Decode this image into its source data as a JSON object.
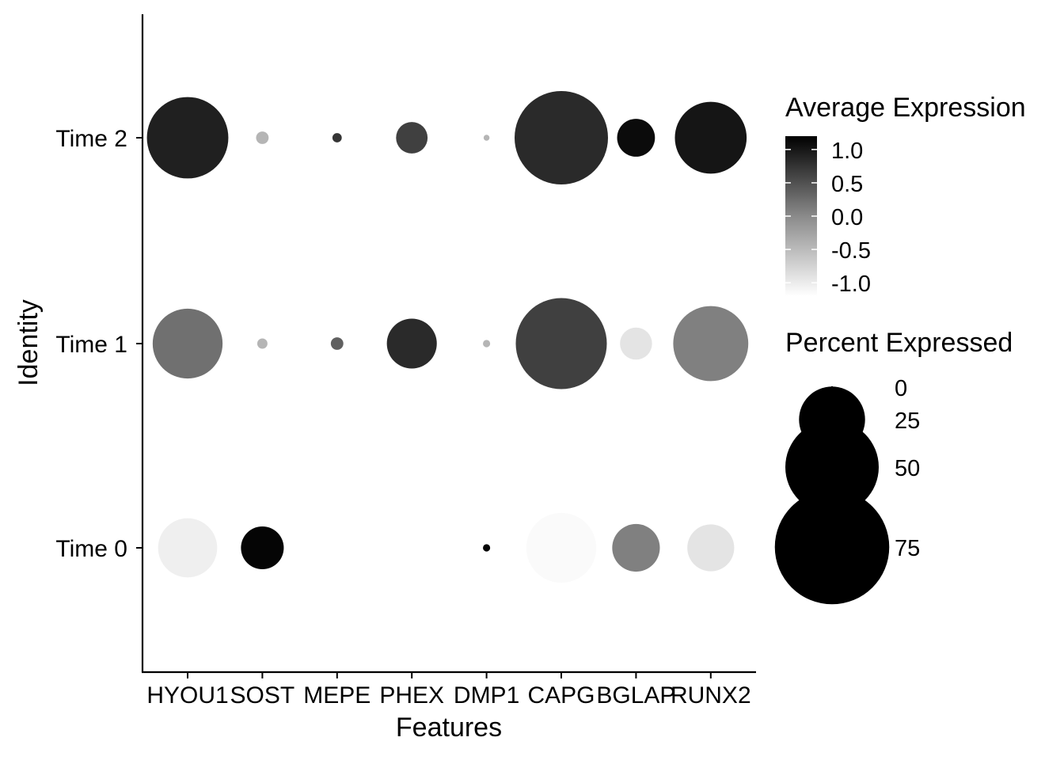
{
  "chart_data": {
    "type": "dot",
    "xlabel": "Features",
    "ylabel": "Identity",
    "features": [
      "HYOU1",
      "SOST",
      "MEPE",
      "PHEX",
      "DMP1",
      "CAPG",
      "BGLAP",
      "RUNX2"
    ],
    "identities": [
      "Time 0",
      "Time 1",
      "Time 2"
    ],
    "avg_expression": {
      "Time 0": [
        -1.05,
        1.15,
        -1.2,
        -1.2,
        1.15,
        -1.15,
        0.0,
        -0.95
      ],
      "Time 1": [
        0.15,
        -0.5,
        0.3,
        0.8,
        -0.5,
        0.6,
        -0.95,
        0.0
      ],
      "Time 2": [
        0.9,
        -0.5,
        0.7,
        0.6,
        -0.5,
        0.8,
        1.1,
        1.0
      ]
    },
    "pct_expressed": {
      "Time 0": [
        20,
        10.5,
        0.3,
        0.9,
        0.3,
        28,
        13,
        12.6
      ],
      "Time 1": [
        28,
        0.6,
        0.9,
        14.3,
        0.3,
        47.5,
        5.9,
        32.3
      ],
      "Time 2": [
        38,
        0.9,
        0.5,
        5.7,
        0.2,
        50,
        8.2,
        29.5
      ]
    },
    "legend_color": {
      "title": "Average Expression",
      "ticks": [
        "1.0",
        "0.5",
        "0.0",
        "-0.5",
        "-1.0"
      ],
      "tick_values": [
        1.0,
        0.5,
        0.0,
        -0.5,
        -1.0
      ],
      "range": [
        -1.2,
        1.2
      ],
      "low_color": "#ffffff",
      "high_color": "#000000"
    },
    "legend_size": {
      "title": "Percent Expressed",
      "labels": [
        "0",
        "25",
        "50",
        "75"
      ],
      "values": [
        0,
        25,
        50,
        75
      ],
      "color": "#000000"
    }
  }
}
